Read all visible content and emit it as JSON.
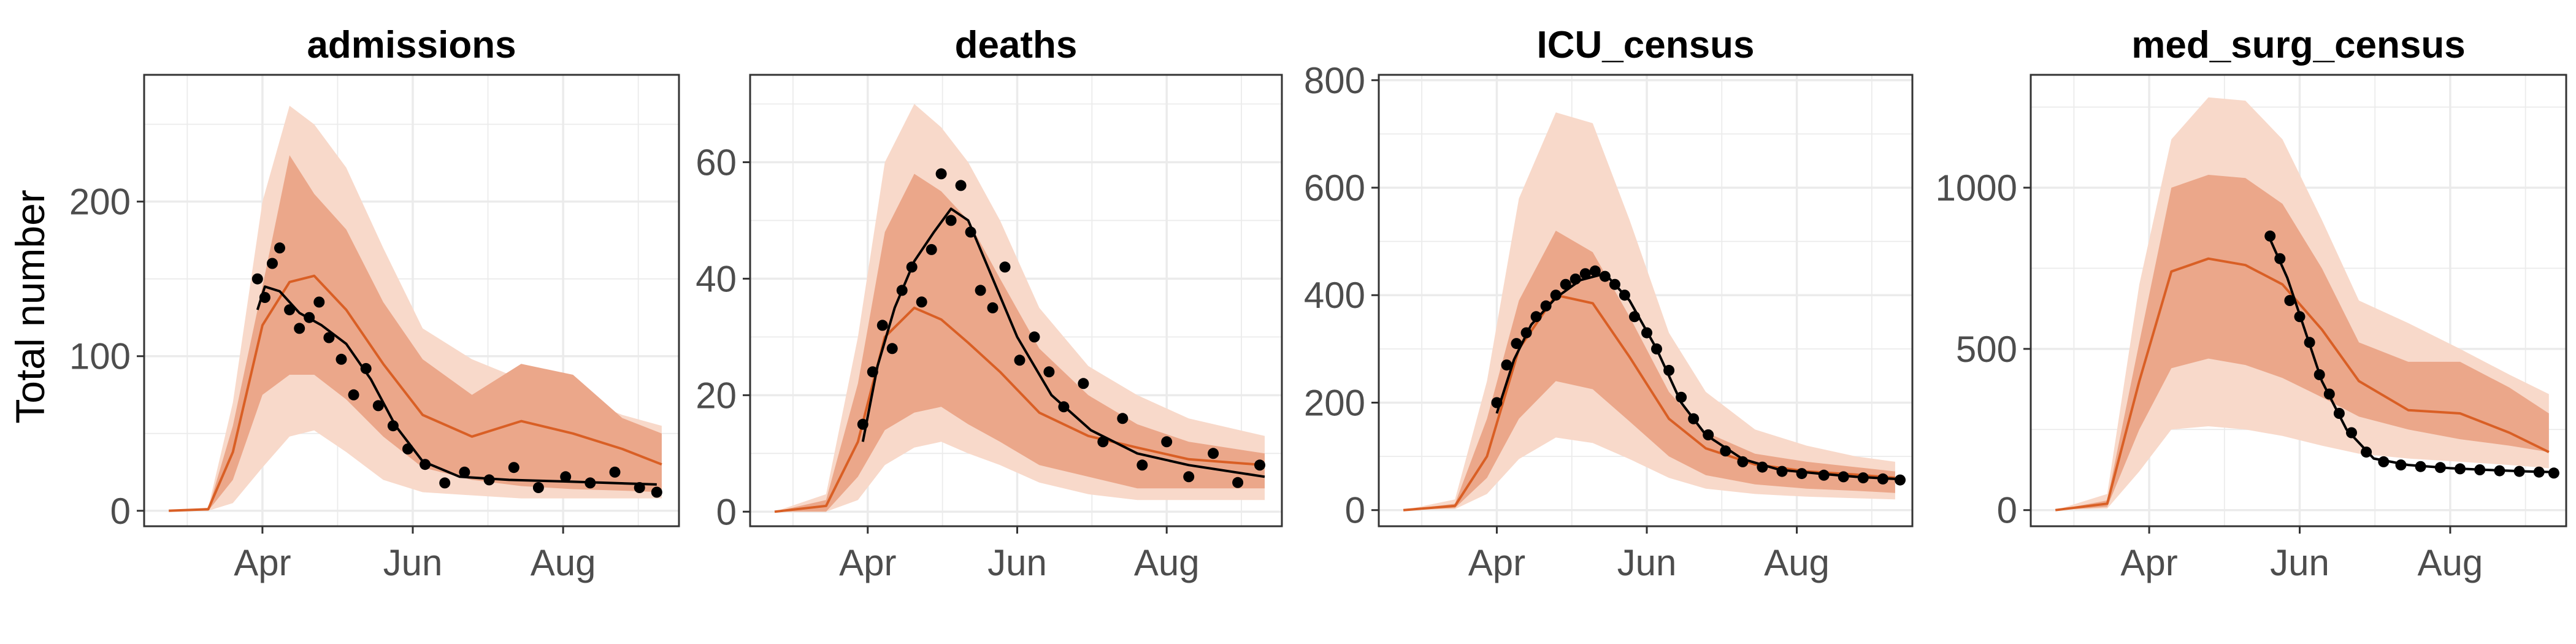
{
  "figure": {
    "ylabel": "Total number",
    "colors": {
      "outer_band": "#f8d9ca",
      "inner_band": "#eba78a",
      "median_line": "#d95f25",
      "observed": "#000000",
      "grid": "#ebebeb",
      "panel_border": "#333333"
    }
  },
  "chart_data": [
    {
      "type": "line",
      "title": "admissions",
      "x_tick_labels": [
        "Apr",
        "Jun",
        "Aug"
      ],
      "x_ticks": [
        "2020-04-01",
        "2020-06-01",
        "2020-08-01"
      ],
      "xlim": [
        "2020-02-13",
        "2020-09-17"
      ],
      "ylim": [
        -10,
        282
      ],
      "y_ticks": [
        0,
        100,
        200
      ],
      "y_tick_labels": [
        "0",
        "100",
        "200"
      ],
      "grid": true,
      "x": [
        "2020-02-23",
        "2020-03-10",
        "2020-03-20",
        "2020-04-01",
        "2020-04-12",
        "2020-04-22",
        "2020-05-05",
        "2020-05-20",
        "2020-06-05",
        "2020-06-25",
        "2020-07-15",
        "2020-08-05",
        "2020-08-25",
        "2020-09-10"
      ],
      "series": [
        {
          "type": "band",
          "lower": [
            0,
            0,
            5,
            28,
            48,
            52,
            38,
            20,
            12,
            10,
            8,
            8,
            8,
            8
          ],
          "upper": [
            0,
            2,
            70,
            200,
            262,
            250,
            222,
            170,
            118,
            98,
            85,
            75,
            62,
            55
          ]
        },
        {
          "type": "band",
          "lower": [
            0,
            0,
            20,
            75,
            88,
            88,
            72,
            48,
            28,
            20,
            16,
            14,
            13,
            12
          ],
          "upper": [
            0,
            1,
            55,
            145,
            230,
            205,
            182,
            135,
            98,
            75,
            95,
            88,
            60,
            50
          ]
        },
        {
          "type": "line",
          "values": [
            0,
            1,
            38,
            120,
            148,
            152,
            130,
            95,
            62,
            48,
            58,
            50,
            40,
            30
          ]
        },
        {
          "type": "line",
          "x": [
            "2020-03-30",
            "2020-04-02",
            "2020-04-08",
            "2020-04-16",
            "2020-04-25",
            "2020-05-05",
            "2020-05-15",
            "2020-05-25",
            "2020-06-05",
            "2020-06-20",
            "2020-07-10",
            "2020-08-01",
            "2020-08-20",
            "2020-09-08"
          ],
          "values": [
            130,
            145,
            142,
            128,
            120,
            108,
            85,
            55,
            32,
            22,
            20,
            19,
            18,
            17
          ]
        },
        {
          "type": "scatter",
          "x": [
            "2020-03-30",
            "2020-04-02",
            "2020-04-05",
            "2020-04-08",
            "2020-04-12",
            "2020-04-16",
            "2020-04-20",
            "2020-04-24",
            "2020-04-28",
            "2020-05-03",
            "2020-05-08",
            "2020-05-13",
            "2020-05-18",
            "2020-05-24",
            "2020-05-30",
            "2020-06-06",
            "2020-06-14",
            "2020-06-22",
            "2020-07-02",
            "2020-07-12",
            "2020-07-22",
            "2020-08-02",
            "2020-08-12",
            "2020-08-22",
            "2020-09-01",
            "2020-09-08"
          ],
          "values": [
            150,
            138,
            160,
            170,
            130,
            118,
            125,
            135,
            112,
            98,
            75,
            92,
            68,
            55,
            40,
            30,
            18,
            25,
            20,
            28,
            15,
            22,
            18,
            25,
            15,
            12
          ]
        }
      ]
    },
    {
      "type": "line",
      "title": "deaths",
      "x_tick_labels": [
        "Apr",
        "Jun",
        "Aug"
      ],
      "x_ticks": [
        "2020-04-01",
        "2020-06-01",
        "2020-08-01"
      ],
      "xlim": [
        "2020-02-13",
        "2020-09-17"
      ],
      "ylim": [
        -2.5,
        75
      ],
      "y_ticks": [
        0,
        20,
        40,
        60
      ],
      "y_tick_labels": [
        "0",
        "20",
        "40",
        "60"
      ],
      "grid": true,
      "x": [
        "2020-02-23",
        "2020-03-15",
        "2020-03-28",
        "2020-04-08",
        "2020-04-20",
        "2020-05-01",
        "2020-05-12",
        "2020-05-25",
        "2020-06-10",
        "2020-06-30",
        "2020-07-20",
        "2020-08-10",
        "2020-09-10"
      ],
      "series": [
        {
          "type": "band",
          "lower": [
            0,
            0,
            2,
            8,
            11,
            12,
            10,
            8,
            5,
            3,
            2,
            2,
            2
          ],
          "upper": [
            0,
            3,
            30,
            60,
            70,
            66,
            60,
            50,
            35,
            25,
            20,
            16,
            13
          ]
        },
        {
          "type": "band",
          "lower": [
            0,
            0,
            6,
            14,
            17,
            18,
            15,
            12,
            8,
            6,
            4,
            4,
            4
          ],
          "upper": [
            0,
            2,
            22,
            48,
            58,
            55,
            50,
            40,
            28,
            20,
            15,
            12,
            10
          ]
        },
        {
          "type": "line",
          "values": [
            0,
            1,
            12,
            30,
            35,
            33,
            29,
            24,
            17,
            13,
            11,
            9,
            8
          ]
        },
        {
          "type": "line",
          "x": [
            "2020-03-30",
            "2020-04-05",
            "2020-04-12",
            "2020-04-20",
            "2020-04-28",
            "2020-05-05",
            "2020-05-12",
            "2020-05-20",
            "2020-06-01",
            "2020-06-15",
            "2020-07-01",
            "2020-07-20",
            "2020-08-10",
            "2020-09-10"
          ],
          "values": [
            12,
            25,
            35,
            43,
            48,
            52,
            50,
            42,
            30,
            20,
            14,
            10,
            8,
            6
          ]
        },
        {
          "type": "scatter",
          "x": [
            "2020-03-30",
            "2020-04-03",
            "2020-04-07",
            "2020-04-11",
            "2020-04-15",
            "2020-04-19",
            "2020-04-23",
            "2020-04-27",
            "2020-05-01",
            "2020-05-05",
            "2020-05-09",
            "2020-05-13",
            "2020-05-17",
            "2020-05-22",
            "2020-05-27",
            "2020-06-02",
            "2020-06-08",
            "2020-06-14",
            "2020-06-20",
            "2020-06-28",
            "2020-07-06",
            "2020-07-14",
            "2020-07-22",
            "2020-08-01",
            "2020-08-10",
            "2020-08-20",
            "2020-08-30",
            "2020-09-08"
          ],
          "values": [
            15,
            24,
            32,
            28,
            38,
            42,
            36,
            45,
            58,
            50,
            56,
            48,
            38,
            35,
            42,
            26,
            30,
            24,
            18,
            22,
            12,
            16,
            8,
            12,
            6,
            10,
            5,
            8
          ]
        }
      ]
    },
    {
      "type": "line",
      "title": "ICU_census",
      "x_tick_labels": [
        "Apr",
        "Jun",
        "Aug"
      ],
      "x_ticks": [
        "2020-04-01",
        "2020-06-01",
        "2020-08-01"
      ],
      "xlim": [
        "2020-02-13",
        "2020-09-17"
      ],
      "ylim": [
        -30,
        810
      ],
      "y_ticks": [
        0,
        200,
        400,
        600,
        800
      ],
      "y_tick_labels": [
        "0",
        "200",
        "400",
        "600",
        "800"
      ],
      "grid": true,
      "x": [
        "2020-02-23",
        "2020-03-15",
        "2020-03-28",
        "2020-04-10",
        "2020-04-25",
        "2020-05-10",
        "2020-05-25",
        "2020-06-10",
        "2020-06-25",
        "2020-07-15",
        "2020-08-05",
        "2020-08-25",
        "2020-09-10"
      ],
      "series": [
        {
          "type": "band",
          "lower": [
            0,
            2,
            30,
            95,
            135,
            125,
            95,
            60,
            40,
            30,
            25,
            22,
            20
          ],
          "upper": [
            0,
            20,
            240,
            580,
            740,
            720,
            540,
            330,
            220,
            150,
            120,
            100,
            90
          ]
        },
        {
          "type": "band",
          "lower": [
            0,
            4,
            60,
            170,
            240,
            225,
            165,
            100,
            65,
            48,
            40,
            36,
            32
          ],
          "upper": [
            0,
            12,
            170,
            390,
            520,
            480,
            360,
            220,
            145,
            105,
            90,
            80,
            72
          ]
        },
        {
          "type": "line",
          "values": [
            0,
            8,
            100,
            300,
            400,
            385,
            285,
            170,
            115,
            85,
            72,
            66,
            60
          ]
        },
        {
          "type": "line",
          "x": [
            "2020-04-01",
            "2020-04-08",
            "2020-04-15",
            "2020-04-25",
            "2020-05-05",
            "2020-05-15",
            "2020-05-25",
            "2020-06-05",
            "2020-06-15",
            "2020-06-25",
            "2020-07-10",
            "2020-07-25",
            "2020-08-10",
            "2020-08-25",
            "2020-09-10"
          ],
          "values": [
            180,
            280,
            345,
            395,
            428,
            440,
            390,
            300,
            200,
            140,
            95,
            75,
            68,
            62,
            58
          ]
        },
        {
          "type": "scatter",
          "x": [
            "2020-04-01",
            "2020-04-05",
            "2020-04-09",
            "2020-04-13",
            "2020-04-17",
            "2020-04-21",
            "2020-04-25",
            "2020-04-29",
            "2020-05-03",
            "2020-05-07",
            "2020-05-11",
            "2020-05-15",
            "2020-05-19",
            "2020-05-23",
            "2020-05-27",
            "2020-06-01",
            "2020-06-05",
            "2020-06-10",
            "2020-06-15",
            "2020-06-20",
            "2020-06-26",
            "2020-07-03",
            "2020-07-10",
            "2020-07-18",
            "2020-07-26",
            "2020-08-03",
            "2020-08-12",
            "2020-08-20",
            "2020-08-28",
            "2020-09-05",
            "2020-09-12"
          ],
          "values": [
            200,
            270,
            310,
            330,
            360,
            380,
            400,
            420,
            430,
            440,
            445,
            435,
            420,
            400,
            360,
            330,
            300,
            260,
            210,
            170,
            140,
            110,
            90,
            80,
            72,
            68,
            65,
            62,
            60,
            58,
            56
          ]
        }
      ]
    },
    {
      "type": "line",
      "title": "med_surg_census",
      "x_tick_labels": [
        "Apr",
        "Jun",
        "Aug"
      ],
      "x_ticks": [
        "2020-04-01",
        "2020-06-01",
        "2020-08-01"
      ],
      "xlim": [
        "2020-02-13",
        "2020-09-17"
      ],
      "ylim": [
        -50,
        1350
      ],
      "y_ticks": [
        0,
        500,
        1000
      ],
      "y_tick_labels": [
        "0",
        "500",
        "1000"
      ],
      "grid": true,
      "x": [
        "2020-02-23",
        "2020-03-15",
        "2020-03-28",
        "2020-04-10",
        "2020-04-25",
        "2020-05-10",
        "2020-05-25",
        "2020-06-10",
        "2020-06-25",
        "2020-07-15",
        "2020-08-05",
        "2020-08-25",
        "2020-09-10"
      ],
      "series": [
        {
          "type": "band",
          "lower": [
            0,
            5,
            120,
            250,
            260,
            250,
            230,
            200,
            175,
            160,
            150,
            140,
            130
          ],
          "upper": [
            0,
            50,
            700,
            1150,
            1280,
            1270,
            1150,
            900,
            650,
            580,
            500,
            420,
            360
          ]
        },
        {
          "type": "band",
          "lower": [
            0,
            10,
            250,
            440,
            470,
            450,
            410,
            350,
            290,
            250,
            220,
            200,
            180
          ],
          "upper": [
            0,
            30,
            520,
            1000,
            1040,
            1030,
            950,
            750,
            520,
            460,
            460,
            380,
            300
          ]
        },
        {
          "type": "line",
          "values": [
            0,
            20,
            400,
            740,
            780,
            760,
            700,
            560,
            400,
            310,
            300,
            240,
            180
          ]
        },
        {
          "type": "line",
          "x": [
            "2020-05-20",
            "2020-05-27",
            "2020-06-03",
            "2020-06-10",
            "2020-06-20",
            "2020-07-01",
            "2020-07-15",
            "2020-08-01",
            "2020-08-15",
            "2020-09-01",
            "2020-09-12"
          ],
          "values": [
            840,
            720,
            560,
            400,
            250,
            160,
            140,
            130,
            125,
            120,
            118
          ]
        },
        {
          "type": "scatter",
          "x": [
            "2020-05-20",
            "2020-05-24",
            "2020-05-28",
            "2020-06-01",
            "2020-06-05",
            "2020-06-09",
            "2020-06-13",
            "2020-06-17",
            "2020-06-22",
            "2020-06-28",
            "2020-07-05",
            "2020-07-12",
            "2020-07-20",
            "2020-07-28",
            "2020-08-05",
            "2020-08-13",
            "2020-08-21",
            "2020-08-29",
            "2020-09-06",
            "2020-09-12"
          ],
          "values": [
            850,
            780,
            650,
            600,
            520,
            420,
            360,
            300,
            240,
            180,
            150,
            140,
            135,
            132,
            128,
            125,
            122,
            120,
            118,
            115
          ]
        }
      ]
    }
  ]
}
